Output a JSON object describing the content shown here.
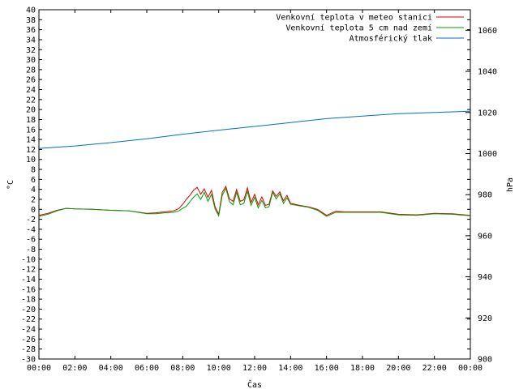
{
  "chart_data": {
    "type": "line",
    "xlabel": "Čas",
    "ylabel": "°C",
    "y2label": "hPa",
    "x_ticks": [
      "00:00",
      "02:00",
      "04:00",
      "06:00",
      "08:00",
      "10:00",
      "12:00",
      "14:00",
      "16:00",
      "18:00",
      "20:00",
      "22:00",
      "00:00"
    ],
    "ylim": [
      -30,
      40
    ],
    "y_ticks": [
      40,
      38,
      36,
      34,
      32,
      30,
      28,
      26,
      24,
      22,
      20,
      18,
      16,
      14,
      12,
      10,
      8,
      6,
      4,
      2,
      0,
      -2,
      -4,
      -6,
      -8,
      -10,
      -12,
      -14,
      -16,
      -18,
      -20,
      -22,
      -24,
      -26,
      -28,
      -30
    ],
    "y2lim": [
      900,
      1070
    ],
    "y2_ticks": [
      1060,
      1040,
      1020,
      1000,
      980,
      960,
      940,
      920,
      900
    ],
    "legend_position": "top-right",
    "series": [
      {
        "name": "Venkovní teplota v meteo stanici",
        "color": "#e00000",
        "axis": "left",
        "x": [
          0,
          0.5,
          1,
          1.5,
          2,
          3,
          4,
          5,
          6,
          6.5,
          7,
          7.5,
          7.8,
          8,
          8.2,
          8.4,
          8.6,
          8.8,
          9.0,
          9.2,
          9.4,
          9.6,
          9.8,
          10.0,
          10.2,
          10.4,
          10.6,
          10.8,
          11.0,
          11.2,
          11.4,
          11.6,
          11.8,
          12.0,
          12.2,
          12.4,
          12.6,
          12.8,
          13.0,
          13.2,
          13.4,
          13.6,
          13.8,
          14.0,
          14.5,
          15.0,
          15.5,
          16.0,
          16.5,
          17,
          18,
          19,
          20,
          21,
          22,
          23,
          24
        ],
        "y": [
          -1.2,
          -0.8,
          -0.2,
          0.2,
          0.1,
          0,
          -0.2,
          -0.3,
          -0.8,
          -0.7,
          -0.5,
          -0.3,
          0.2,
          1.0,
          2.0,
          2.8,
          3.8,
          4.4,
          3.0,
          4.1,
          2.4,
          3.8,
          0.5,
          -1.0,
          3.4,
          4.6,
          2.1,
          1.6,
          4.0,
          1.6,
          1.9,
          4.3,
          1.4,
          3.0,
          0.9,
          2.5,
          0.8,
          1.0,
          3.7,
          2.6,
          3.5,
          1.7,
          2.8,
          1.2,
          0.8,
          0.5,
          0.0,
          -1.2,
          -0.4,
          -0.5,
          -0.5,
          -0.5,
          -1.0,
          -1.1,
          -0.8,
          -0.9,
          -1.2
        ]
      },
      {
        "name": "Venkovní teplota 5 cm nad zemí",
        "color": "#00a000",
        "axis": "left",
        "x": [
          0,
          0.5,
          1,
          1.5,
          2,
          3,
          4,
          5,
          6,
          6.5,
          7,
          7.5,
          7.8,
          8,
          8.2,
          8.4,
          8.6,
          8.8,
          9.0,
          9.2,
          9.4,
          9.6,
          9.8,
          10.0,
          10.2,
          10.4,
          10.6,
          10.8,
          11.0,
          11.2,
          11.4,
          11.6,
          11.8,
          12.0,
          12.2,
          12.4,
          12.6,
          12.8,
          13.0,
          13.2,
          13.4,
          13.6,
          13.8,
          14.0,
          14.5,
          15.0,
          15.5,
          16.0,
          16.5,
          17,
          18,
          19,
          20,
          21,
          22,
          23,
          24
        ],
        "y": [
          -1.4,
          -1.0,
          -0.3,
          0.2,
          0.1,
          0,
          -0.2,
          -0.3,
          -0.9,
          -0.9,
          -0.7,
          -0.6,
          -0.3,
          0.2,
          0.6,
          1.5,
          2.4,
          3.1,
          2.0,
          3.4,
          1.6,
          3.0,
          0.1,
          -1.3,
          2.8,
          4.2,
          1.5,
          0.9,
          3.4,
          0.9,
          1.2,
          3.6,
          0.8,
          2.4,
          0.3,
          1.8,
          0.3,
          0.5,
          3.4,
          2.1,
          3.1,
          1.2,
          2.3,
          1.0,
          0.7,
          0.4,
          -0.2,
          -1.4,
          -0.6,
          -0.6,
          -0.6,
          -0.6,
          -1.1,
          -1.2,
          -0.9,
          -1.0,
          -1.3
        ]
      },
      {
        "name": "Atmosférický tlak",
        "color": "#0070c8",
        "axis": "right",
        "x": [
          0,
          2,
          4,
          6,
          8,
          10,
          12,
          14,
          16,
          18,
          20,
          22,
          24
        ],
        "y": [
          1002.5,
          1003.7,
          1005.3,
          1007.2,
          1009.4,
          1011.4,
          1013.2,
          1015.1,
          1017.0,
          1018.2,
          1019.4,
          1020.0,
          1020.6
        ]
      }
    ]
  }
}
